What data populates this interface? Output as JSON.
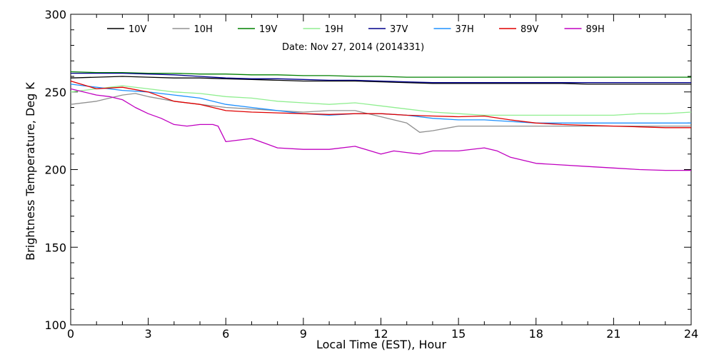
{
  "chart_data": {
    "type": "line",
    "subtitle": "Date: Nov 27, 2014 (2014331)",
    "xlabel": "Local Time (EST), Hour",
    "ylabel": "Brightness Temperature, Deg K",
    "xlim": [
      0,
      24
    ],
    "ylim": [
      100,
      300
    ],
    "xticks": [
      0,
      3,
      6,
      9,
      12,
      15,
      18,
      21,
      24
    ],
    "yticks": [
      100,
      150,
      200,
      250,
      300
    ],
    "grid": false,
    "legend_position": "top",
    "series": [
      {
        "name": "10V",
        "color": "#000000",
        "x": [
          0,
          1,
          2,
          3,
          4,
          5,
          6,
          7,
          8,
          9,
          10,
          11,
          12,
          13,
          14,
          15,
          16,
          17,
          18,
          19,
          20,
          21,
          22,
          23,
          24
        ],
        "y": [
          259,
          259.5,
          260,
          259.5,
          259,
          259,
          258.5,
          258,
          257.5,
          257,
          257,
          257,
          256.5,
          256,
          255.5,
          255.5,
          255.5,
          255.5,
          255.5,
          255.5,
          255,
          255,
          255,
          255,
          255
        ]
      },
      {
        "name": "10H",
        "color": "#909090",
        "x": [
          0,
          1,
          2,
          2.5,
          3,
          4,
          5,
          6,
          7,
          8,
          9,
          10,
          11,
          11.5,
          12,
          12.5,
          13,
          13.5,
          14,
          15,
          16,
          17,
          18,
          19,
          20,
          21,
          22,
          23,
          24
        ],
        "y": [
          242,
          244,
          248,
          249,
          247,
          244,
          242,
          240,
          239,
          238,
          237,
          238,
          238,
          236,
          234,
          232,
          230,
          224,
          225,
          228,
          228,
          228,
          228,
          228,
          228,
          228,
          228,
          228,
          228
        ]
      },
      {
        "name": "19V",
        "color": "#008000",
        "x": [
          0,
          1,
          2,
          3,
          4,
          5,
          6,
          7,
          8,
          9,
          10,
          11,
          12,
          13,
          14,
          15,
          16,
          17,
          18,
          19,
          20,
          21,
          22,
          23,
          24
        ],
        "y": [
          263,
          262.5,
          262.5,
          262,
          262,
          261.5,
          261.5,
          261,
          261,
          260.5,
          260.5,
          260,
          260,
          259.5,
          259.5,
          259.5,
          259.5,
          259.5,
          259.5,
          259.5,
          259.5,
          259.5,
          259.5,
          259.5,
          259.5
        ]
      },
      {
        "name": "19H",
        "color": "#90ee90",
        "x": [
          0,
          1,
          2,
          3,
          4,
          5,
          6,
          7,
          8,
          9,
          10,
          11,
          12,
          13,
          14,
          15,
          16,
          17,
          18,
          19,
          20,
          21,
          22,
          23,
          24
        ],
        "y": [
          250,
          252,
          254,
          252,
          250,
          249,
          247,
          246,
          244,
          243,
          242,
          243,
          241,
          239,
          237,
          236,
          235,
          235,
          235,
          235,
          235,
          235,
          236,
          236,
          237
        ]
      },
      {
        "name": "37V",
        "color": "#00008b",
        "x": [
          0,
          1,
          2,
          3,
          4,
          5,
          6,
          7,
          8,
          9,
          10,
          11,
          12,
          13,
          14,
          15,
          16,
          17,
          18,
          19,
          20,
          21,
          22,
          23,
          24
        ],
        "y": [
          262,
          262,
          262,
          261.5,
          261,
          260,
          259,
          258.5,
          258.5,
          258,
          257.5,
          257.5,
          257,
          256.5,
          256,
          256,
          256,
          256,
          256,
          256,
          256,
          256,
          256,
          256,
          256
        ]
      },
      {
        "name": "37H",
        "color": "#1e90ff",
        "x": [
          0,
          1,
          2,
          3,
          4,
          5,
          6,
          7,
          8,
          9,
          10,
          11,
          12,
          13,
          14,
          15,
          16,
          17,
          18,
          19,
          20,
          21,
          22,
          23,
          24
        ],
        "y": [
          255,
          253,
          251,
          250,
          248,
          246,
          242,
          240,
          238,
          236,
          235,
          236,
          236,
          235,
          233,
          232,
          232,
          231,
          230,
          230,
          230,
          230,
          230,
          230,
          230
        ]
      },
      {
        "name": "89V",
        "color": "#e00000",
        "x": [
          0,
          1,
          2,
          3,
          4,
          5,
          6,
          7,
          8,
          9,
          10,
          11,
          12,
          13,
          14,
          15,
          16,
          17,
          18,
          19,
          20,
          21,
          22,
          23,
          24
        ],
        "y": [
          257,
          252,
          253,
          250,
          244,
          242,
          238,
          237,
          236.5,
          236,
          235.5,
          236,
          236,
          235,
          234.5,
          234,
          234.5,
          232,
          230,
          229,
          228.5,
          228,
          227.5,
          227,
          227
        ]
      },
      {
        "name": "89H",
        "color": "#c000c0",
        "x": [
          0,
          0.5,
          1,
          1.5,
          2,
          2.5,
          3,
          3.5,
          4,
          4.5,
          5,
          5.5,
          5.7,
          6,
          7,
          7.5,
          8,
          9,
          10,
          11,
          12,
          12.5,
          13,
          13.5,
          14,
          15,
          16,
          16.5,
          17,
          18,
          19,
          20,
          21,
          22,
          23,
          24
        ],
        "y": [
          252,
          250,
          248,
          247,
          245,
          240,
          236,
          233,
          229,
          228,
          229,
          229,
          228,
          218,
          220,
          217,
          214,
          213,
          213,
          215,
          210,
          212,
          211,
          210,
          212,
          212,
          214,
          212,
          208,
          204,
          203,
          202,
          201,
          200,
          199.5,
          199.5
        ]
      }
    ]
  }
}
